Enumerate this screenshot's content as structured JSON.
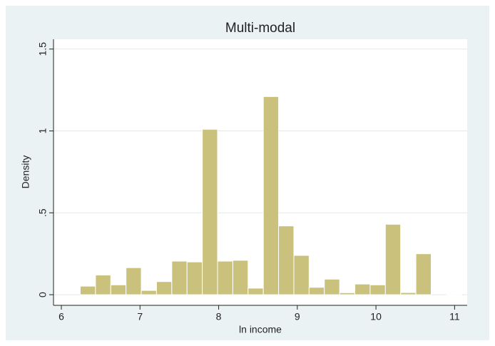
{
  "chart_data": {
    "type": "histogram",
    "title": "Multi-modal",
    "x_label": "ln income",
    "y_label": "Density",
    "bins": [
      6.24,
      6.434,
      6.628,
      6.822,
      7.016,
      7.21,
      7.404,
      7.598,
      7.792,
      7.986,
      8.18,
      8.374,
      8.568,
      8.762,
      8.956,
      9.15,
      9.344,
      9.538,
      9.732,
      9.926,
      10.12,
      10.314,
      10.508,
      10.702,
      10.896,
      11.09
    ],
    "values": [
      0.052,
      0.12,
      0.06,
      0.165,
      0.026,
      0.08,
      0.205,
      0.2,
      1.01,
      0.205,
      0.21,
      0.04,
      1.21,
      0.42,
      0.24,
      0.045,
      0.095,
      0.012,
      0.065,
      0.06,
      0.43,
      0.013,
      0.25,
      0,
      0.004
    ],
    "color": "#c9c17c",
    "xlim": [
      5.9,
      11.16
    ],
    "xticks": [
      6,
      7,
      8,
      9,
      10,
      11
    ],
    "ylim": [
      -0.065,
      1.56
    ],
    "yticks": [
      0,
      {
        "value": 0.5,
        "label": ".5"
      },
      1,
      1.5
    ],
    "grid": true
  }
}
